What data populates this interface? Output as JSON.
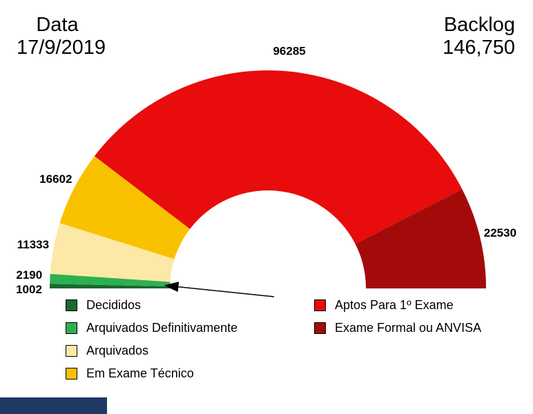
{
  "header": {
    "data_label": "Data",
    "date": "17/9/2019",
    "backlog_label": "Backlog",
    "backlog_value": "146,750"
  },
  "chart_data": {
    "type": "pie",
    "subtype": "half-donut-gauge",
    "angle_span_deg": 180,
    "segments": [
      {
        "label": "Decididos",
        "value": 1002,
        "color": "#186a30"
      },
      {
        "label": "Arquivados Definitivamente",
        "value": 2190,
        "color": "#2eb050"
      },
      {
        "label": "Arquivados",
        "value": 11333,
        "color": "#fce9a6"
      },
      {
        "label": "Em Exame Técnico",
        "value": 16602,
        "color": "#f8c200"
      },
      {
        "label": "Aptos Para 1º Exame",
        "value": 96285,
        "color": "#e80c0c"
      },
      {
        "label": "Exame Formal ou ANVISA",
        "value": 22530,
        "color": "#a30b0b"
      }
    ],
    "legend": {
      "position": "bottom",
      "left_column": [
        0,
        1,
        2,
        3
      ],
      "right_column": [
        4,
        5
      ]
    },
    "annotation_arrow": {
      "description": "black arrow pointing to the small green Decididos / Arquivados Definitivamente segments"
    }
  },
  "footer": {
    "bar_color": "#1f3864"
  }
}
